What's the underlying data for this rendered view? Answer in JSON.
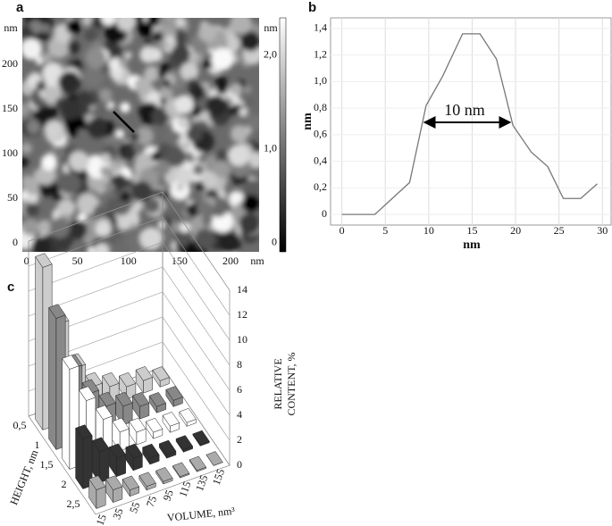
{
  "chart_data": [
    {
      "type": "image",
      "panel_label": "a",
      "xlim": [
        -4,
        228
      ],
      "xticks": [
        0,
        50,
        100,
        150,
        200
      ],
      "xunit": "nm",
      "ylim": [
        -10,
        252
      ],
      "yticks": [
        0,
        50,
        100,
        150,
        200
      ],
      "yunit": "nm",
      "zlim": [
        -0.1,
        2.4
      ],
      "zticks": [
        0,
        {
          "value": 1,
          "label": "1,0"
        },
        {
          "value": 2,
          "label": "2,0"
        }
      ],
      "zunit": "nm"
    },
    {
      "type": "line",
      "panel_label": "b",
      "annotation": "10 nm",
      "xlabel": "nm",
      "ylabel": "nm",
      "x": [
        0,
        3.8,
        7.8,
        9.7,
        11.6,
        13.9,
        15.9,
        17.8,
        19.7,
        21.8,
        23.7,
        25.5,
        27.5,
        29.4
      ],
      "series": [
        {
          "color": "#777777",
          "values": [
            0,
            0,
            0.24,
            0.82,
            1.04,
            1.36,
            1.36,
            1.17,
            0.67,
            0.47,
            0.36,
            0.12,
            0.12,
            0.23
          ]
        }
      ],
      "xlim": [
        -1.3,
        31
      ],
      "xticks": [
        0,
        5,
        10,
        15,
        20,
        25,
        30
      ],
      "ylim": [
        -0.08,
        1.48
      ],
      "yticks": [
        0,
        {
          "value": 0.2,
          "label": "0,2"
        },
        {
          "value": 0.4,
          "label": "0,4"
        },
        {
          "value": 0.6,
          "label": "0,6"
        },
        {
          "value": 0.8,
          "label": "0,8"
        },
        {
          "value": 1,
          "label": "1,0"
        },
        {
          "value": 1.2,
          "label": "1,2"
        },
        {
          "value": 1.4,
          "label": "1,4"
        }
      ],
      "grid": true
    },
    {
      "type": "bar3d",
      "panel_label": "c",
      "xlabel": "HEIGHT, nm",
      "ylabel": "VOLUME, nm³",
      "zlabel": [
        "RELATIVE",
        "CONTENT, %"
      ],
      "xcategories": [
        {
          "value": 0.5,
          "label": "0,5"
        },
        1,
        {
          "value": 1.5,
          "label": "1,5"
        },
        2,
        {
          "value": 2.5,
          "label": "2,5"
        }
      ],
      "ycategories": [
        15,
        35,
        55,
        75,
        95,
        115,
        135,
        155
      ],
      "zlim": [
        0,
        14
      ],
      "zticks": [
        0,
        2,
        4,
        6,
        8,
        10,
        12,
        14
      ],
      "colors": [
        "#cccccc",
        "#888888",
        "#ffffff",
        "#333333",
        "#aaaaaa"
      ],
      "values": [
        [
          13,
          8,
          4,
          2,
          1.5,
          1,
          1,
          0.5
        ],
        [
          10.5,
          6,
          3.5,
          2,
          1.5,
          1,
          0.5,
          0.5
        ],
        [
          8,
          5,
          3,
          1.5,
          1,
          0.5,
          0.5,
          0.3
        ],
        [
          4,
          2.5,
          1.5,
          1,
          0.5,
          0.3,
          0.2,
          0.1
        ],
        [
          1.5,
          1,
          0.5,
          0.3,
          0.2,
          0.1,
          0.1,
          0
        ]
      ]
    }
  ]
}
